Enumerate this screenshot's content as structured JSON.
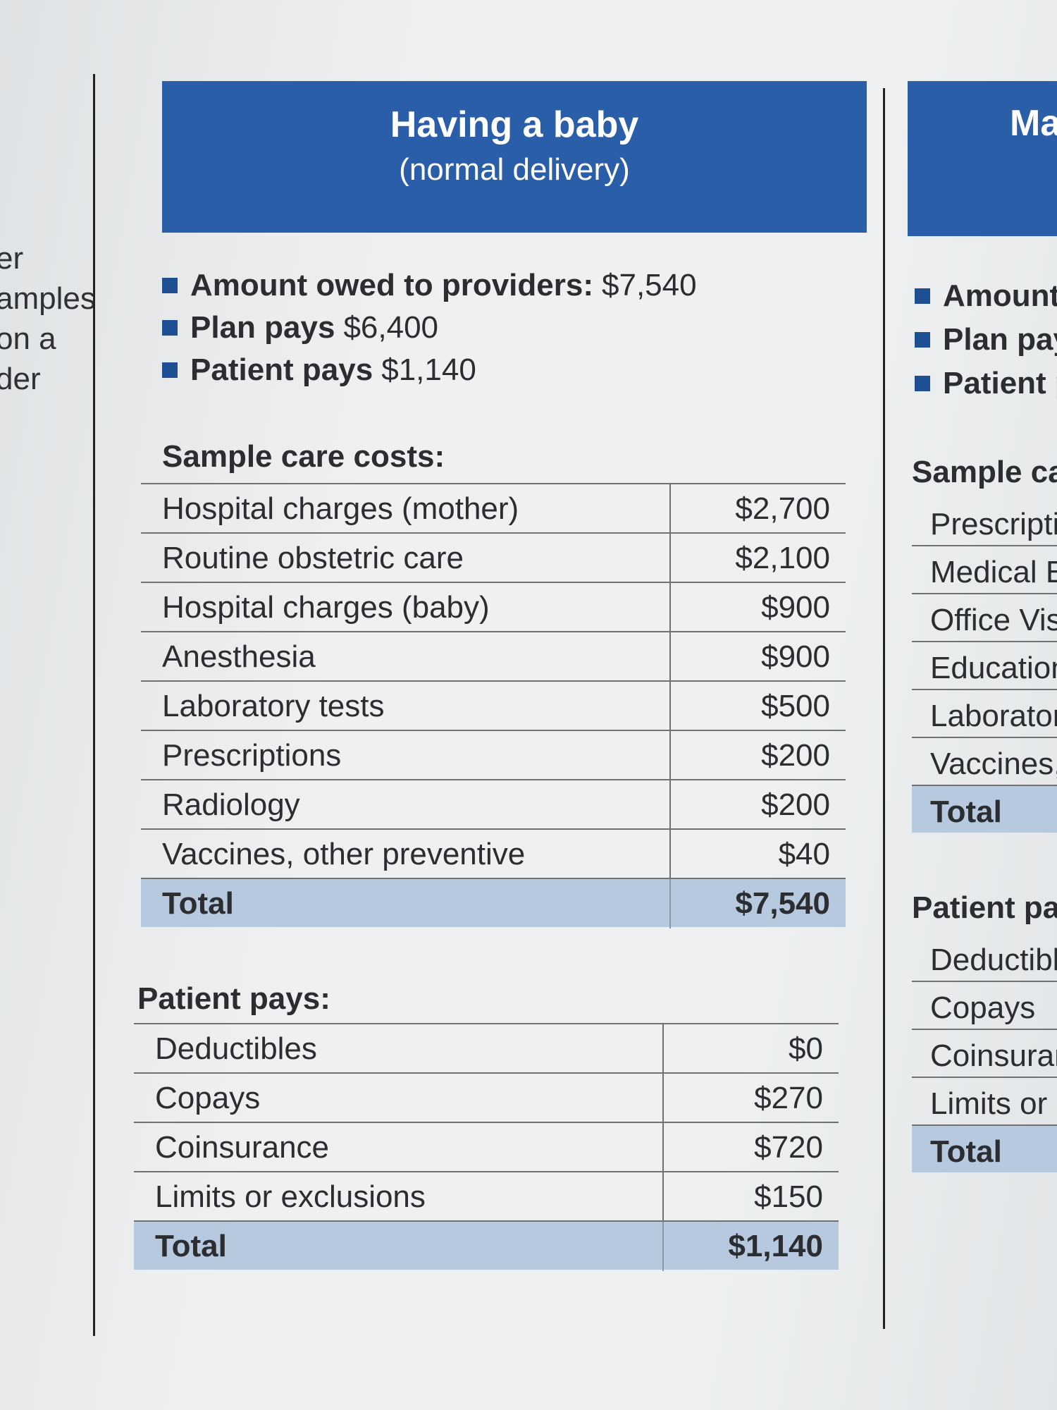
{
  "left_fragment": [
    "er",
    "amples",
    "on a",
    "der"
  ],
  "card": {
    "title": "Having a baby",
    "subtitle": "(normal delivery)",
    "summary": [
      {
        "label": "Amount owed to providers:",
        "value": "$7,540"
      },
      {
        "label": "Plan pays",
        "value": "$6,400"
      },
      {
        "label": "Patient pays",
        "value": "$1,140"
      }
    ],
    "sample_costs": {
      "heading": "Sample care costs:",
      "rows": [
        {
          "label": "Hospital charges (mother)",
          "value": "$2,700"
        },
        {
          "label": "Routine obstetric care",
          "value": "$2,100"
        },
        {
          "label": "Hospital charges (baby)",
          "value": "$900"
        },
        {
          "label": "Anesthesia",
          "value": "$900"
        },
        {
          "label": "Laboratory tests",
          "value": "$500"
        },
        {
          "label": "Prescriptions",
          "value": "$200"
        },
        {
          "label": "Radiology",
          "value": "$200"
        },
        {
          "label": "Vaccines, other preventive",
          "value": "$40"
        }
      ],
      "total": {
        "label": "Total",
        "value": "$7,540"
      }
    },
    "patient_pays": {
      "heading": "Patient pays:",
      "rows": [
        {
          "label": "Deductibles",
          "value": "$0"
        },
        {
          "label": "Copays",
          "value": "$270"
        },
        {
          "label": "Coinsurance",
          "value": "$720"
        },
        {
          "label": "Limits or exclusions",
          "value": "$150"
        }
      ],
      "total": {
        "label": "Total",
        "value": "$1,140"
      }
    }
  },
  "right_card": {
    "title": "Ma",
    "summary": [
      "Amount",
      "Plan pay",
      "Patient p"
    ],
    "sample_heading": "Sample ca",
    "sample_rows": [
      "Prescriptio",
      "Medical Ec",
      "Office Visi",
      "Education",
      "Laboratory",
      "Vaccines,"
    ],
    "sample_total": "Total",
    "patient_heading": "Patient pay",
    "patient_rows": [
      "Deductible",
      "Copays",
      "Coinsuran",
      "Limits or e"
    ],
    "patient_total": "Total"
  }
}
